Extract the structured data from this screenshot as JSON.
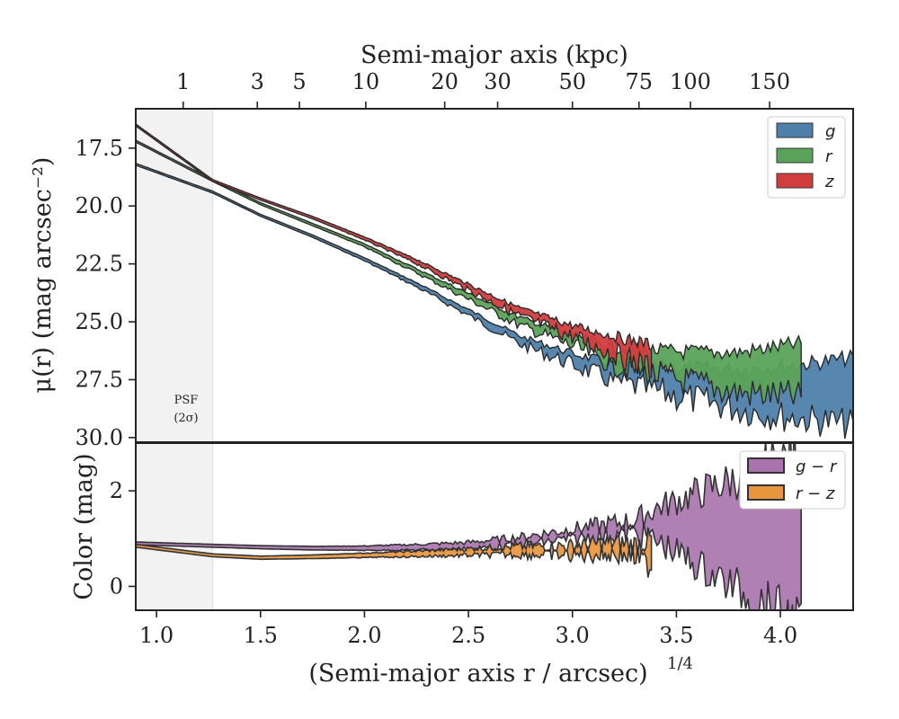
{
  "chart_data": [
    {
      "type": "area",
      "panel": "surface-brightness",
      "xlabel": "(Semi-major axis r / arcsec)",
      "xlabel_exponent": "1/4",
      "ylabel": "μ(r) (mag arcsec⁻²)",
      "top_xlabel": "Semi-major axis (kpc)",
      "top_x_ticks": [
        {
          "label": "1",
          "value": 1
        },
        {
          "label": "3",
          "value": 3
        },
        {
          "label": "5",
          "value": 5
        },
        {
          "label": "10",
          "value": 10
        },
        {
          "label": "20",
          "value": 20
        },
        {
          "label": "30",
          "value": 30
        },
        {
          "label": "50",
          "value": 50
        },
        {
          "label": "75",
          "value": 75
        },
        {
          "label": "100",
          "value": 100
        },
        {
          "label": "150",
          "value": 150
        }
      ],
      "y_ticks": [
        "17.5",
        "20.0",
        "22.5",
        "25.0",
        "27.5",
        "30.0"
      ],
      "ylim": [
        30.2,
        15.8
      ],
      "xlim": [
        0.9,
        4.35
      ],
      "psf_region": {
        "x_end": 1.27,
        "label_line1": "PSF",
        "label_line2": "(2σ)"
      },
      "grid": false,
      "legend_position": "top-right",
      "series": [
        {
          "name": "g",
          "color": "#4e7faa",
          "x": [
            0.9,
            1.27,
            1.5,
            1.75,
            2.0,
            2.25,
            2.5,
            2.75,
            3.0,
            3.2,
            3.5,
            3.8,
            4.0,
            4.35
          ],
          "y": [
            18.2,
            19.4,
            20.4,
            21.3,
            22.3,
            23.4,
            24.6,
            25.8,
            26.6,
            27.2,
            27.6,
            27.9,
            28.0,
            28.0
          ]
        },
        {
          "name": "r",
          "color": "#5ba35a",
          "x": [
            0.9,
            1.27,
            1.5,
            1.75,
            2.0,
            2.25,
            2.5,
            2.75,
            3.0,
            3.2,
            3.5,
            3.8,
            4.1
          ],
          "y": [
            17.2,
            18.9,
            19.9,
            20.8,
            21.7,
            22.8,
            23.9,
            25.0,
            25.8,
            26.5,
            26.9,
            27.2,
            27.1
          ]
        },
        {
          "name": "z",
          "color": "#d23d3e",
          "x": [
            0.9,
            1.27,
            1.5,
            1.75,
            2.0,
            2.25,
            2.5,
            2.75,
            3.0,
            3.2,
            3.38
          ],
          "y": [
            16.5,
            18.9,
            19.7,
            20.5,
            21.4,
            22.4,
            23.5,
            24.6,
            25.4,
            26.0,
            26.5
          ]
        }
      ]
    },
    {
      "type": "area",
      "panel": "color",
      "xlabel": "(Semi-major axis r / arcsec)",
      "xlabel_exponent": "1/4",
      "ylabel": "Color (mag)",
      "x_ticks": [
        "1.0",
        "1.5",
        "2.0",
        "2.5",
        "3.0",
        "3.5",
        "4.0"
      ],
      "x_tick_values": [
        1.0,
        1.5,
        2.0,
        2.5,
        3.0,
        3.5,
        4.0
      ],
      "y_ticks": [
        "0",
        "2"
      ],
      "y_tick_values": [
        0,
        2
      ],
      "ylim": [
        -0.5,
        3.0
      ],
      "xlim": [
        0.9,
        4.35
      ],
      "grid": false,
      "legend_position": "top-right",
      "series": [
        {
          "name": "g − r",
          "color": "#a974ad",
          "x": [
            0.9,
            1.27,
            1.5,
            1.75,
            2.0,
            2.25,
            2.5,
            2.75,
            3.0,
            3.2,
            3.4,
            3.6,
            3.8,
            4.1
          ],
          "y": [
            0.9,
            0.85,
            0.82,
            0.8,
            0.8,
            0.82,
            0.85,
            0.95,
            1.1,
            1.2,
            1.3,
            1.2,
            1.1,
            1.0
          ]
        },
        {
          "name": "r − z",
          "color": "#e8963e",
          "x": [
            0.9,
            1.27,
            1.5,
            1.75,
            2.0,
            2.25,
            2.5,
            2.75,
            3.0,
            3.2,
            3.38
          ],
          "y": [
            0.85,
            0.65,
            0.6,
            0.62,
            0.65,
            0.68,
            0.72,
            0.75,
            0.75,
            0.8,
            0.7
          ]
        }
      ]
    }
  ]
}
